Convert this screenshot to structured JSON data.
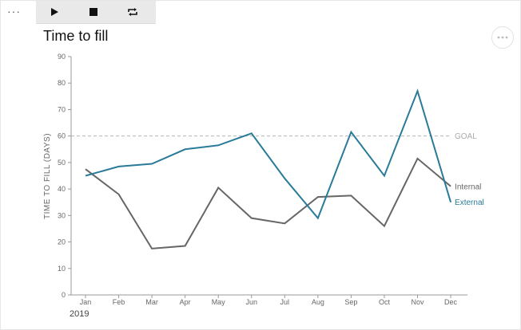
{
  "ui": {
    "menu_glyph": "···",
    "toolbar": {
      "play_icon": "play-icon",
      "stop_icon": "stop-icon",
      "repeat_icon": "repeat-icon"
    },
    "more_icon": "more-horizontal-icon"
  },
  "chart_data": {
    "type": "line",
    "title": "Time to fill",
    "ylabel": "TIME TO FILL (DAYS)",
    "xlabel": "",
    "year_label": "2019",
    "categories": [
      "Jan",
      "Feb",
      "Mar",
      "Apr",
      "May",
      "Jun",
      "Jul",
      "Aug",
      "Sep",
      "Oct",
      "Nov",
      "Dec"
    ],
    "ylim": [
      0,
      90
    ],
    "yticks": [
      0,
      10,
      20,
      30,
      40,
      50,
      60,
      70,
      80,
      90
    ],
    "grid": false,
    "goal": {
      "value": 60,
      "label": "GOAL"
    },
    "series": [
      {
        "name": "Internal",
        "color": "#666666",
        "values": [
          47.5,
          38,
          17.5,
          18.5,
          40.5,
          29,
          27,
          37,
          37.5,
          26,
          51.5,
          41
        ]
      },
      {
        "name": "External",
        "color": "#2a7b99",
        "values": [
          45,
          48.5,
          49.5,
          55,
          56.5,
          61,
          44,
          29,
          61.5,
          45,
          77,
          35
        ]
      }
    ]
  }
}
